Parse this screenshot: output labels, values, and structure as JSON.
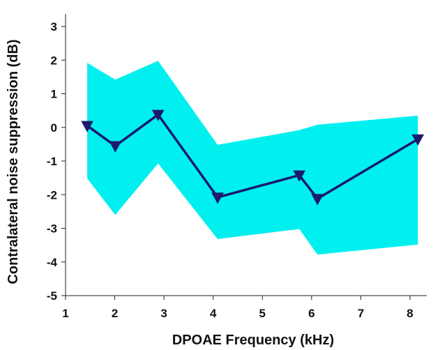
{
  "chart_data": {
    "type": "line",
    "title": "",
    "xlabel": "DPOAE Frequency (kHz)",
    "ylabel": "Contralateral noise suppression (dB)",
    "xlim": [
      1,
      8.4
    ],
    "ylim": [
      -5,
      3.5
    ],
    "xticks": [
      1,
      2,
      3,
      4,
      5,
      6,
      7,
      8
    ],
    "yticks": [
      -5,
      -4,
      -3,
      -2,
      -1,
      0,
      1,
      2,
      3
    ],
    "grid": false,
    "legend": "none",
    "series": [
      {
        "type": "line",
        "x": [
          1.44,
          2.01,
          2.88,
          4.09,
          5.75,
          6.12,
          8.16
        ],
        "values": [
          0.05,
          -0.55,
          0.38,
          -2.08,
          -1.42,
          -2.12,
          -0.35
        ],
        "color": "#1a1a6e",
        "marker": "triangle-down"
      }
    ],
    "band": {
      "type": "area",
      "color": "#00f0f0",
      "x": [
        1.44,
        2.01,
        2.88,
        4.09,
        5.75,
        6.12,
        8.16
      ],
      "upper": [
        1.92,
        1.42,
        1.98,
        -0.52,
        -0.08,
        0.08,
        0.35
      ],
      "lower": [
        -1.52,
        -2.6,
        -1.07,
        -3.32,
        -3.02,
        -3.78,
        -3.48
      ]
    }
  }
}
